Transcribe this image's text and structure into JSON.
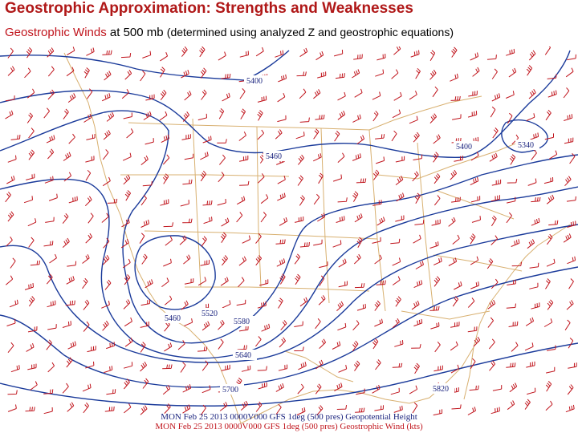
{
  "title": "Geostrophic Approximation: Strengths and Weaknesses",
  "subtitle": {
    "part1": "Geostrophic Winds",
    "part2": "at 500 mb",
    "part3": "(determined using analyzed Z and geostrophic equations)"
  },
  "contours": [
    {
      "label": "5400",
      "key": "c5400a"
    },
    {
      "label": "5460",
      "key": "c5460a"
    },
    {
      "label": "5400",
      "key": "c5400b"
    },
    {
      "label": "5340",
      "key": "c5340"
    },
    {
      "label": "5460",
      "key": "c5460b"
    },
    {
      "label": "5520",
      "key": "c5520"
    },
    {
      "label": "5580",
      "key": "c5580"
    },
    {
      "label": "5640",
      "key": "c5640"
    },
    {
      "label": "5700",
      "key": "c5700"
    },
    {
      "label": "5820",
      "key": "c5820"
    }
  ],
  "footer": {
    "line1": "MON Feb 25 2013 0000V000 GFS 1deg (500 pres) Geopotential Height",
    "line2": "MON Feb 25 2013 0000V000 GFS 1deg (500 pres) Geostrophic Wind (kts)"
  },
  "colors": {
    "contour": "#1a3a9a",
    "wind": "#c0141c",
    "border": "#d8b070"
  }
}
